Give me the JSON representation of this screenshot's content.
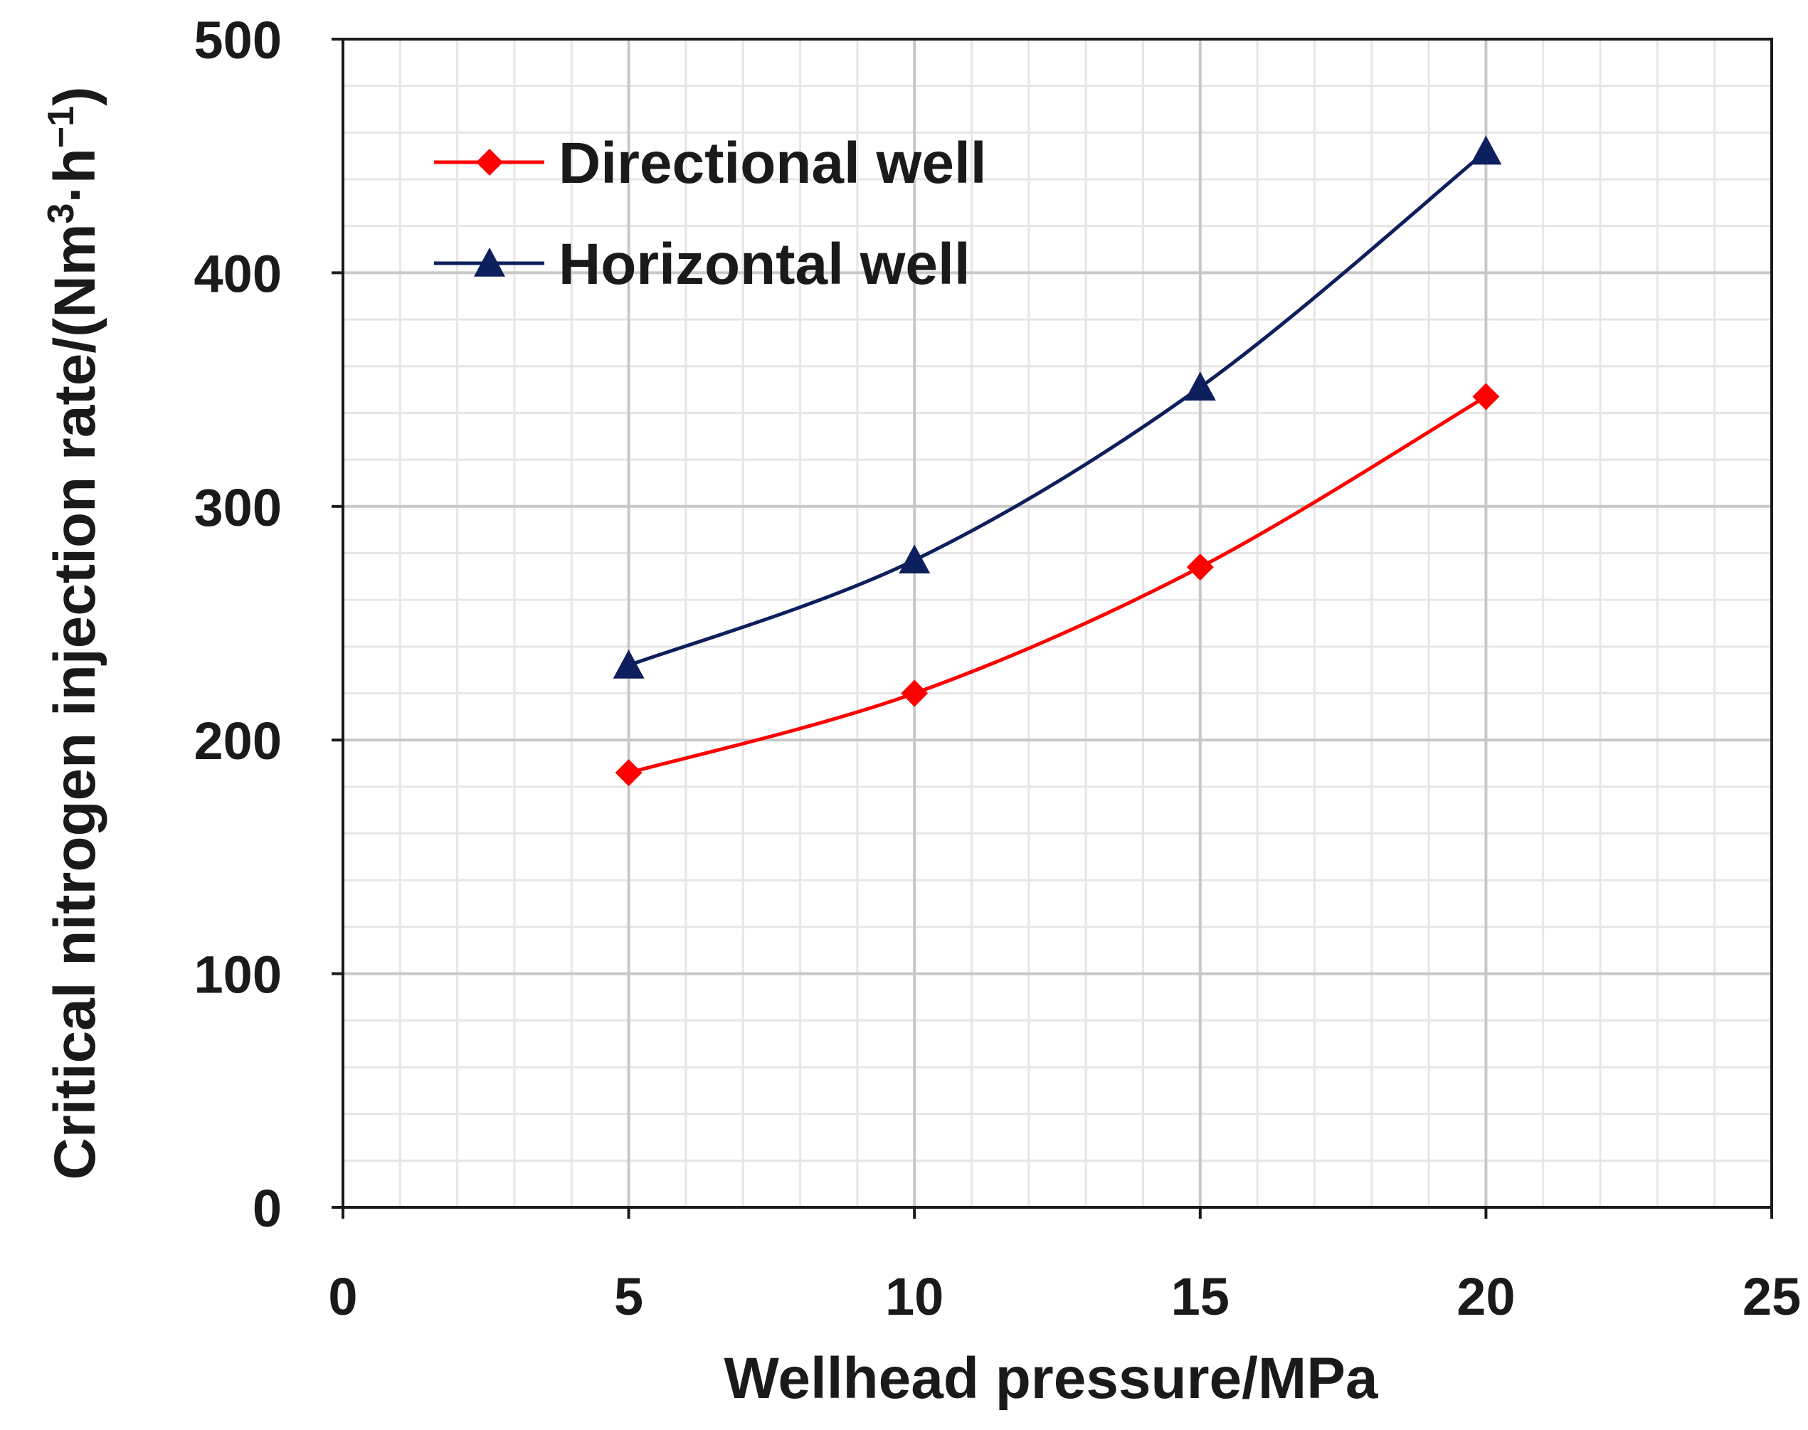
{
  "chart_data": {
    "type": "line",
    "title": "",
    "xlabel": "Wellhead pressure/MPa",
    "ylabel": {
      "prefix": "Critical nitrogen injection rate/(Nm",
      "sup1": "3",
      "mid": "·h",
      "sup2": "−1",
      "suffix": ")"
    },
    "xlim": [
      0,
      25
    ],
    "ylim": [
      0,
      500
    ],
    "x_ticks": [
      0,
      5,
      10,
      15,
      20,
      25
    ],
    "y_ticks": [
      0,
      100,
      200,
      300,
      400,
      500
    ],
    "x_tick_labels": [
      "0",
      "5",
      "10",
      "15",
      "20",
      "25"
    ],
    "y_tick_labels": [
      "0",
      "100",
      "200",
      "300",
      "400",
      "500"
    ],
    "x_minor_step": 1,
    "y_minor_step": 20,
    "grid": true,
    "legend_position": "top-left",
    "series": [
      {
        "name": "Directional well",
        "color": "#ff0000",
        "marker": "diamond",
        "x": [
          5,
          10,
          15,
          20
        ],
        "y": [
          186,
          220,
          274,
          347
        ]
      },
      {
        "name": "Horizontal well",
        "color": "#0d1f5c",
        "marker": "triangle",
        "x": [
          5,
          10,
          15,
          20
        ],
        "y": [
          232,
          277,
          351,
          452
        ]
      }
    ]
  }
}
